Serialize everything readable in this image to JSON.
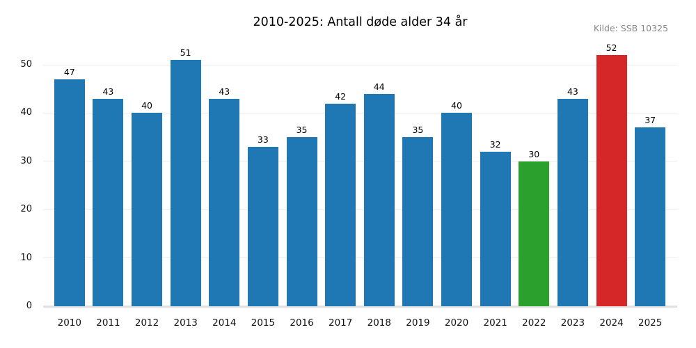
{
  "title": "2010-2025: Antall døde alder 34 år",
  "source": "Kilde: SSB 10325",
  "chart_data": {
    "type": "bar",
    "title": "2010-2025: Antall døde alder 34 år",
    "source": "Kilde: SSB 10325",
    "categories": [
      "2010",
      "2011",
      "2012",
      "2013",
      "2014",
      "2015",
      "2016",
      "2017",
      "2018",
      "2019",
      "2020",
      "2021",
      "2022",
      "2023",
      "2024",
      "2025"
    ],
    "values": [
      47,
      43,
      40,
      51,
      43,
      33,
      35,
      42,
      44,
      35,
      40,
      32,
      30,
      43,
      52,
      37
    ],
    "bar_colors": [
      "#1f77b4",
      "#1f77b4",
      "#1f77b4",
      "#1f77b4",
      "#1f77b4",
      "#1f77b4",
      "#1f77b4",
      "#1f77b4",
      "#1f77b4",
      "#1f77b4",
      "#1f77b4",
      "#1f77b4",
      "#2ca02c",
      "#1f77b4",
      "#d62728",
      "#1f77b4"
    ],
    "default_bar_color": "#1f77b4",
    "highlight_colors": {
      "2022": "#2ca02c",
      "2024": "#d62728"
    },
    "value_labels": true,
    "xlabel": "",
    "ylabel": "",
    "yticks": [
      0,
      10,
      20,
      30,
      40,
      50
    ],
    "ylim": [
      0,
      54.7
    ],
    "grid": true,
    "grid_color": "#ececec",
    "baseline_color": "#e0e0e0",
    "legend_position": "none"
  }
}
